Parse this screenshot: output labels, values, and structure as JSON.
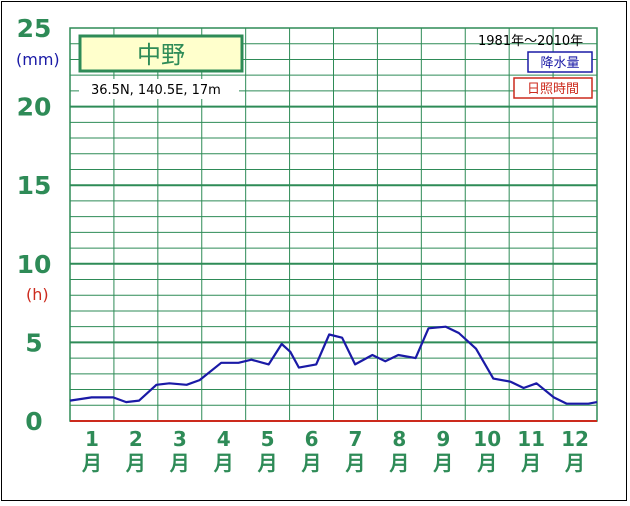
{
  "chart_data": {
    "type": "line",
    "title": "中野",
    "location": "36.5N,  140.5E,  17m",
    "period": "1981年～2010年",
    "y_unit_primary": "(mm)",
    "y_unit_secondary": "(h)",
    "ylim": [
      0,
      25
    ],
    "yticks": [
      "0",
      "5",
      "10",
      "15",
      "20",
      "25"
    ],
    "x_range": [
      1,
      13.2
    ],
    "month_numbers": [
      "1",
      "2",
      "3",
      "4",
      "5",
      "6",
      "7",
      "8",
      "9",
      "10",
      "11",
      "12"
    ],
    "month_suffix": "月",
    "legend": {
      "precip": "降水量",
      "sunshine": "日照時間"
    },
    "colors": {
      "precip": "#1a1aa6",
      "sunshine": "#cc2a1d",
      "grid": "#2e8b57"
    },
    "series": [
      {
        "name": "降水量",
        "x": [
          1.0,
          1.5,
          2.0,
          2.3,
          2.6,
          3.0,
          3.3,
          3.7,
          4.0,
          4.5,
          4.9,
          5.2,
          5.6,
          5.9,
          6.1,
          6.3,
          6.7,
          7.0,
          7.3,
          7.6,
          8.0,
          8.3,
          8.6,
          9.0,
          9.3,
          9.7,
          10.0,
          10.4,
          10.8,
          11.2,
          11.5,
          11.8,
          12.2,
          12.5,
          13.0,
          13.2
        ],
        "values": [
          1.3,
          1.5,
          1.5,
          1.2,
          1.3,
          2.3,
          2.4,
          2.3,
          2.6,
          3.7,
          3.7,
          3.9,
          3.6,
          4.9,
          4.4,
          3.4,
          3.6,
          5.5,
          5.3,
          3.6,
          4.2,
          3.8,
          4.2,
          4.0,
          5.9,
          6.0,
          5.6,
          4.6,
          2.7,
          2.5,
          2.1,
          2.4,
          1.5,
          1.1,
          1.1,
          1.2
        ]
      },
      {
        "name": "日照時間",
        "x": [
          1.0,
          13.2
        ],
        "values": [
          0,
          0
        ]
      }
    ]
  }
}
